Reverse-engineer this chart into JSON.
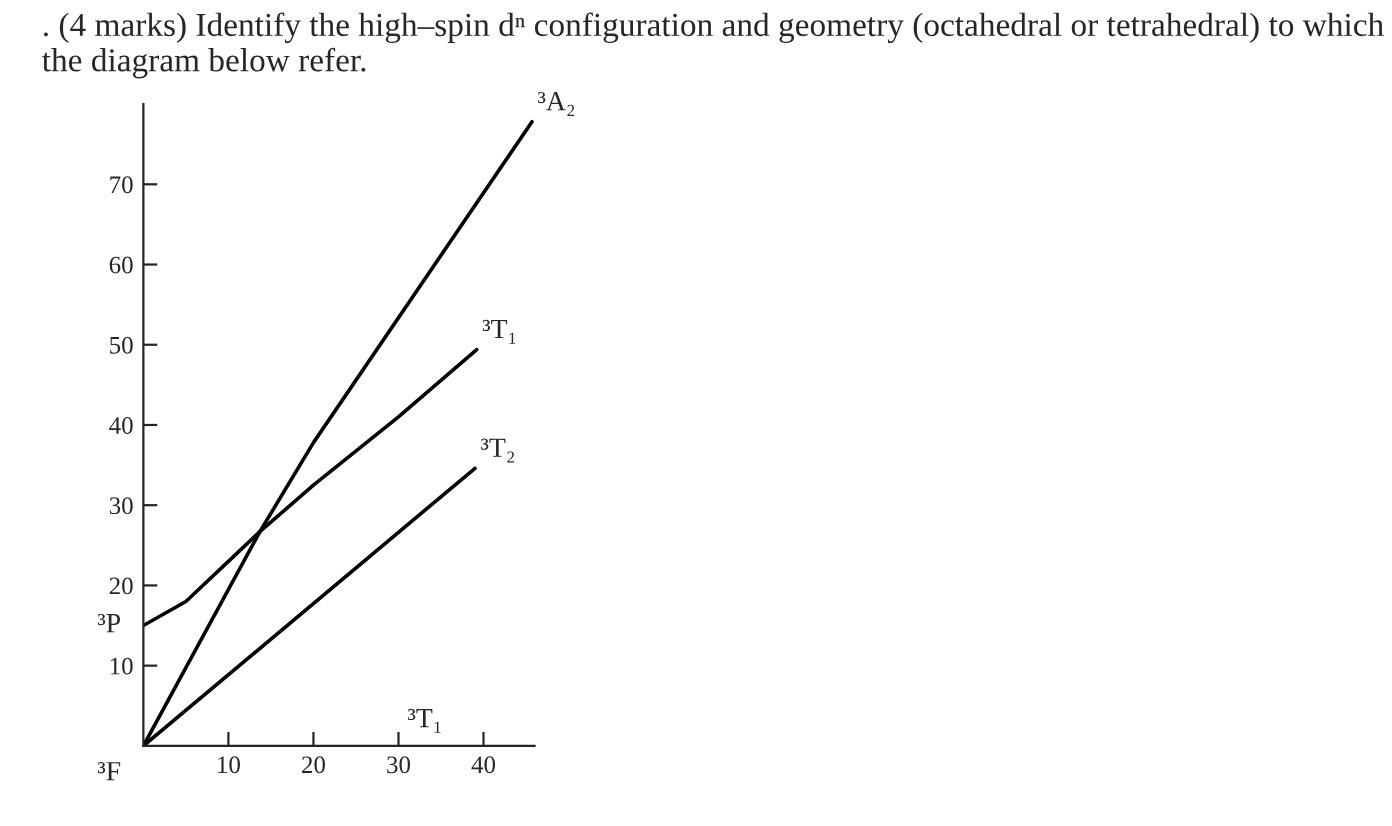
{
  "chart_data": {
    "type": "line",
    "title": ". (4 marks) Identify the high–spin dⁿ configuration and geometry (octahedral or tetrahedral) to which the diagram below refer.",
    "xlim": [
      0,
      46
    ],
    "ylim": [
      0,
      80
    ],
    "xticks": [
      10,
      20,
      30,
      40
    ],
    "yticks": [
      10,
      20,
      30,
      40,
      50,
      60,
      70
    ],
    "grid": false,
    "legend": false,
    "series": [
      {
        "name": "³A₂",
        "color": "#000000",
        "x": [
          0,
          13.7,
          20,
          45.7
        ],
        "values": [
          0,
          26.7,
          37.8,
          77.8
        ]
      },
      {
        "name": "³T₁",
        "color": "#000000",
        "x": [
          0,
          5,
          10,
          13.7,
          20,
          30,
          39.2
        ],
        "values": [
          15,
          18,
          23,
          26.7,
          32.5,
          41,
          49.4
        ]
      },
      {
        "name": "³T₂",
        "color": "#000000",
        "x": [
          0,
          39
        ],
        "values": [
          0,
          34.6
        ]
      }
    ],
    "annotations": [
      {
        "text": "³P",
        "x": 0,
        "y": 15
      },
      {
        "text": "³F",
        "x": 0,
        "y": 0
      },
      "³T₁"
    ]
  }
}
